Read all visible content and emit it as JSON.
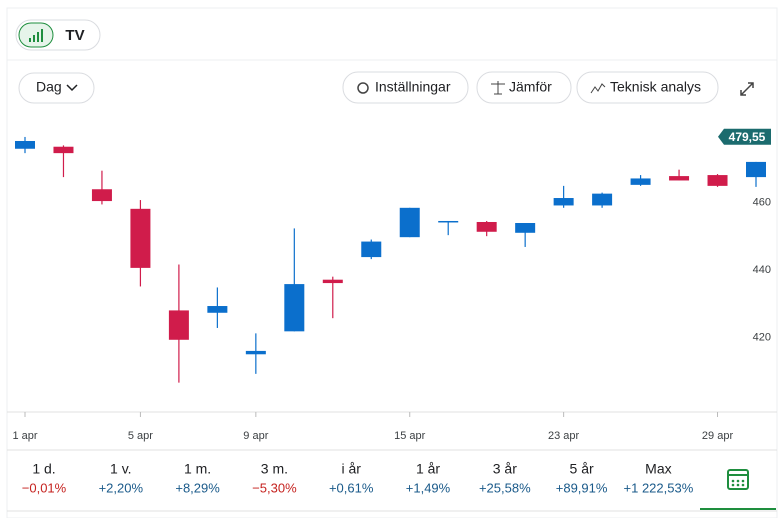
{
  "toolbar": {
    "interval": "Dag",
    "settings": "Inställningar",
    "compare": "Jämför",
    "analysis": "Teknisk analys"
  },
  "chart_data": {
    "type": "candlestick",
    "categories": [
      "1 apr",
      null,
      null,
      "5 apr",
      null,
      null,
      "9 apr",
      null,
      null,
      null,
      "15 apr",
      null,
      null,
      null,
      "23 apr",
      null,
      null,
      null,
      "29 apr",
      null
    ],
    "open": [
      476.0,
      476.6,
      464.0,
      458.2,
      428.1,
      427.4,
      415.1,
      421.9,
      437.2,
      443.9,
      449.8,
      454.3,
      454.3,
      451.1,
      459.2,
      459.2,
      465.3,
      467.9,
      468.2,
      467.6
    ],
    "high": [
      479.5,
      477.0,
      469.5,
      460.8,
      441.7,
      434.9,
      421.3,
      452.4,
      438.1,
      449.1,
      458.5,
      454.6,
      454.6,
      454.0,
      465.0,
      463.0,
      468.2,
      469.8,
      468.5,
      472.1
    ],
    "low": [
      474.7,
      467.6,
      459.5,
      435.2,
      406.7,
      422.9,
      409.3,
      421.9,
      425.8,
      443.3,
      449.8,
      450.4,
      450.1,
      446.9,
      458.5,
      458.5,
      465.0,
      466.6,
      464.7,
      464.7
    ],
    "close": [
      478.3,
      474.7,
      460.5,
      440.7,
      419.4,
      429.4,
      416.1,
      435.9,
      436.2,
      448.5,
      458.5,
      454.6,
      451.4,
      454.0,
      461.4,
      462.7,
      467.2,
      466.6,
      465.0,
      472.1
    ],
    "up_color": "#0b6fcc",
    "down_color": "#d01c4b",
    "ylim": [
      398,
      486
    ],
    "yticks": [
      420,
      440,
      460,
      480
    ],
    "last_price": {
      "value": 479.55,
      "label": "479,55"
    }
  },
  "periods": [
    {
      "label": "1 d.",
      "change": "−0,01%"
    },
    {
      "label": "1 v.",
      "change": "+2,20%"
    },
    {
      "label": "1 m.",
      "change": "+8,29%"
    },
    {
      "label": "3 m.",
      "change": "−5,30%"
    },
    {
      "label": "i år",
      "change": "+0,61%"
    },
    {
      "label": "1 år",
      "change": "+1,49%"
    },
    {
      "label": "3 år",
      "change": "+25,58%"
    },
    {
      "label": "5 år",
      "change": "+89,91%"
    },
    {
      "label": "Max",
      "change": "+1 222,53%"
    }
  ]
}
